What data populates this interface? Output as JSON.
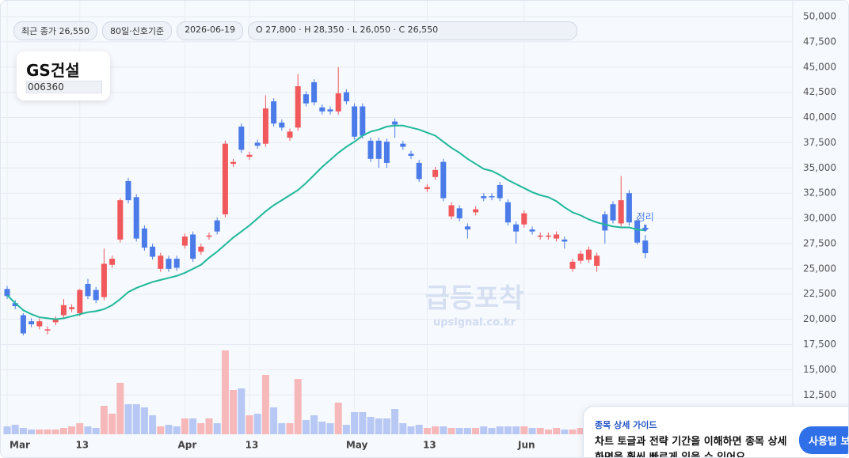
{
  "header": {
    "badges": [
      "최근 종가 26,550",
      "80일·신호기준",
      "2026-06-19",
      "O 27,800 · H 28,350 · L 26,050 · C 26,550"
    ],
    "stock_name": "GS건설",
    "stock_code": "006360"
  },
  "watermark": {
    "title": "급등포착",
    "url": "upsignal.co.kr"
  },
  "guide": {
    "title": "종목 상세 가이드",
    "lines": [
      "차트 토글과 전략 기간을 이해하면 종목 상세",
      "화면을 훨씬 빠르게 읽을 수 있어요."
    ],
    "button": "사용법 보기"
  },
  "chart_data": {
    "type": "candlestick",
    "categories": [
      "Mar",
      null,
      null,
      null,
      null,
      null,
      null,
      null,
      null,
      "13",
      null,
      null,
      null,
      null,
      null,
      null,
      null,
      null,
      null,
      null,
      null,
      null,
      "Apr",
      null,
      null,
      null,
      null,
      null,
      null,
      null,
      "13",
      null,
      null,
      null,
      null,
      null,
      null,
      null,
      null,
      null,
      null,
      null,
      null,
      "May",
      null,
      null,
      null,
      null,
      null,
      null,
      null,
      null,
      "13",
      null,
      null,
      null,
      null,
      null,
      null,
      null,
      null,
      null,
      null,
      null,
      "Jun",
      null,
      null,
      null,
      null,
      null,
      null,
      null,
      null,
      null,
      null,
      null,
      null,
      null,
      null,
      null
    ],
    "open": [
      23000,
      21600,
      20400,
      19800,
      19300,
      18900,
      19700,
      20400,
      21000,
      20600,
      23500,
      22900,
      22200,
      25400,
      27900,
      33700,
      32100,
      29000,
      27200,
      25000,
      26000,
      26000,
      27300,
      28400,
      26700,
      28200,
      29800,
      30400,
      35400,
      39100,
      36100,
      37500,
      37400,
      41600,
      39500,
      38000,
      39000,
      42300,
      43500,
      41000,
      40800,
      40600,
      42500,
      41100,
      41100,
      37700,
      37700,
      37600,
      39600,
      37400,
      36400,
      35500,
      32900,
      34100,
      35600,
      30200,
      31000,
      29200,
      30600,
      32200,
      32200,
      33300,
      31600,
      29400,
      29400,
      28900,
      28200,
      28200,
      28000,
      27900,
      25000,
      25800,
      25900,
      25300,
      30400,
      31400,
      29500,
      32500,
      29800,
      27800
    ],
    "high": [
      23300,
      21900,
      20600,
      20100,
      20100,
      19300,
      20300,
      22000,
      21500,
      23000,
      24000,
      23200,
      27000,
      26300,
      32000,
      34000,
      32400,
      29300,
      27500,
      26600,
      26300,
      26300,
      28500,
      28700,
      27500,
      28600,
      30100,
      37700,
      35900,
      39400,
      36600,
      37800,
      42200,
      41900,
      39800,
      38900,
      44300,
      42600,
      43800,
      41300,
      41100,
      45000,
      42800,
      41400,
      41400,
      38000,
      38000,
      37900,
      39900,
      37700,
      36700,
      35800,
      33400,
      35100,
      35900,
      31600,
      31300,
      29500,
      31200,
      32500,
      32500,
      33600,
      31900,
      29700,
      30800,
      29200,
      28600,
      28600,
      28700,
      28200,
      26000,
      26800,
      27200,
      26600,
      30700,
      31700,
      34200,
      32800,
      30100,
      28350
    ],
    "low": [
      22000,
      21000,
      18400,
      19200,
      19000,
      18500,
      19400,
      20100,
      20700,
      20300,
      22000,
      21600,
      21900,
      25100,
      27600,
      31500,
      27700,
      26800,
      25900,
      24700,
      24700,
      24800,
      27000,
      25700,
      26400,
      27900,
      28400,
      30100,
      35100,
      36500,
      35800,
      36900,
      37100,
      39100,
      38700,
      37700,
      38700,
      41100,
      41200,
      40300,
      40300,
      40300,
      41300,
      37800,
      37900,
      35600,
      35000,
      35000,
      38000,
      36800,
      35900,
      33600,
      32600,
      33800,
      31700,
      29900,
      29700,
      28000,
      30300,
      31700,
      31800,
      31700,
      29300,
      27500,
      29100,
      28400,
      27900,
      27900,
      27700,
      27000,
      24700,
      25500,
      25600,
      24700,
      27500,
      29500,
      29200,
      29300,
      27400,
      26050
    ],
    "close": [
      22300,
      21300,
      18600,
      19500,
      19800,
      19000,
      20000,
      21400,
      21200,
      22900,
      22300,
      21900,
      25500,
      26000,
      31800,
      31800,
      28000,
      27100,
      26200,
      26300,
      25000,
      25100,
      28200,
      26000,
      27200,
      28300,
      28700,
      37400,
      35600,
      36800,
      36300,
      37200,
      40900,
      39400,
      39000,
      38600,
      43100,
      41400,
      41500,
      40600,
      40600,
      42400,
      41600,
      38100,
      38200,
      35900,
      35900,
      35500,
      39300,
      37100,
      36200,
      33900,
      33100,
      34800,
      32000,
      31300,
      30000,
      28900,
      30900,
      32000,
      32100,
      32000,
      29600,
      28700,
      30500,
      28700,
      28300,
      28300,
      28400,
      27700,
      25700,
      26500,
      26900,
      26300,
      28800,
      29800,
      31800,
      29600,
      27600,
      26550
    ],
    "volume": [
      100,
      120,
      80,
      60,
      60,
      60,
      60,
      80,
      100,
      140,
      100,
      80,
      360,
      260,
      650,
      380,
      380,
      340,
      240,
      100,
      120,
      100,
      200,
      200,
      140,
      200,
      140,
      1060,
      560,
      580,
      240,
      260,
      750,
      340,
      140,
      140,
      700,
      180,
      240,
      160,
      140,
      400,
      120,
      280,
      280,
      220,
      200,
      200,
      320,
      140,
      100,
      120,
      80,
      100,
      100,
      80,
      80,
      80,
      80,
      100,
      80,
      100,
      100,
      100,
      100,
      80,
      80,
      60,
      80,
      60,
      60,
      80,
      80,
      60,
      80,
      80,
      100,
      80,
      100,
      80
    ],
    "ma": {
      "color": "#1fb89a",
      "values": [
        22400,
        21600,
        20900,
        20500,
        20200,
        20100,
        20000,
        20100,
        20300,
        20500,
        20700,
        20800,
        21000,
        21400,
        22000,
        22700,
        23100,
        23400,
        23700,
        23900,
        24100,
        24300,
        24600,
        25000,
        25400,
        26100,
        26700,
        27400,
        28100,
        28700,
        29300,
        30000,
        30700,
        31300,
        31800,
        32300,
        32800,
        33500,
        34300,
        35100,
        35800,
        36500,
        37100,
        37600,
        38200,
        38600,
        38800,
        39100,
        39200,
        39200,
        39000,
        38800,
        38500,
        38200,
        37600,
        37000,
        36500,
        35900,
        35400,
        34900,
        34700,
        34300,
        33800,
        33400,
        33000,
        32600,
        32300,
        32100,
        31700,
        31100,
        30600,
        30300,
        29900,
        29600,
        29400,
        29200,
        29100,
        29100,
        28900,
        28800
      ]
    },
    "up_color": "#f0585c",
    "down_color": "#4a7be8",
    "up_volume_color": "#f7b8ba",
    "down_volume_color": "#b8c8f4",
    "annotation": "정리",
    "ylim": [
      8600,
      50000
    ],
    "yticks": [
      {
        "value": 50000,
        "label": "50,000"
      },
      {
        "value": 47500,
        "label": "47,500"
      },
      {
        "value": 45000,
        "label": "45,000"
      },
      {
        "value": 42500,
        "label": "42,500"
      },
      {
        "value": 40000,
        "label": "40,000"
      },
      {
        "value": 37500,
        "label": "37,500"
      },
      {
        "value": 35000,
        "label": "35,000"
      },
      {
        "value": 32500,
        "label": "32,500"
      },
      {
        "value": 30000,
        "label": "30,000"
      },
      {
        "value": 27500,
        "label": "27,500"
      },
      {
        "value": 25000,
        "label": "25,000"
      },
      {
        "value": 22500,
        "label": "22,500"
      },
      {
        "value": 20000,
        "label": "20,000"
      },
      {
        "value": 17500,
        "label": "17,500"
      },
      {
        "value": 15000,
        "label": "15,000"
      },
      {
        "value": 12500,
        "label": "12,500"
      }
    ],
    "grid": true
  }
}
